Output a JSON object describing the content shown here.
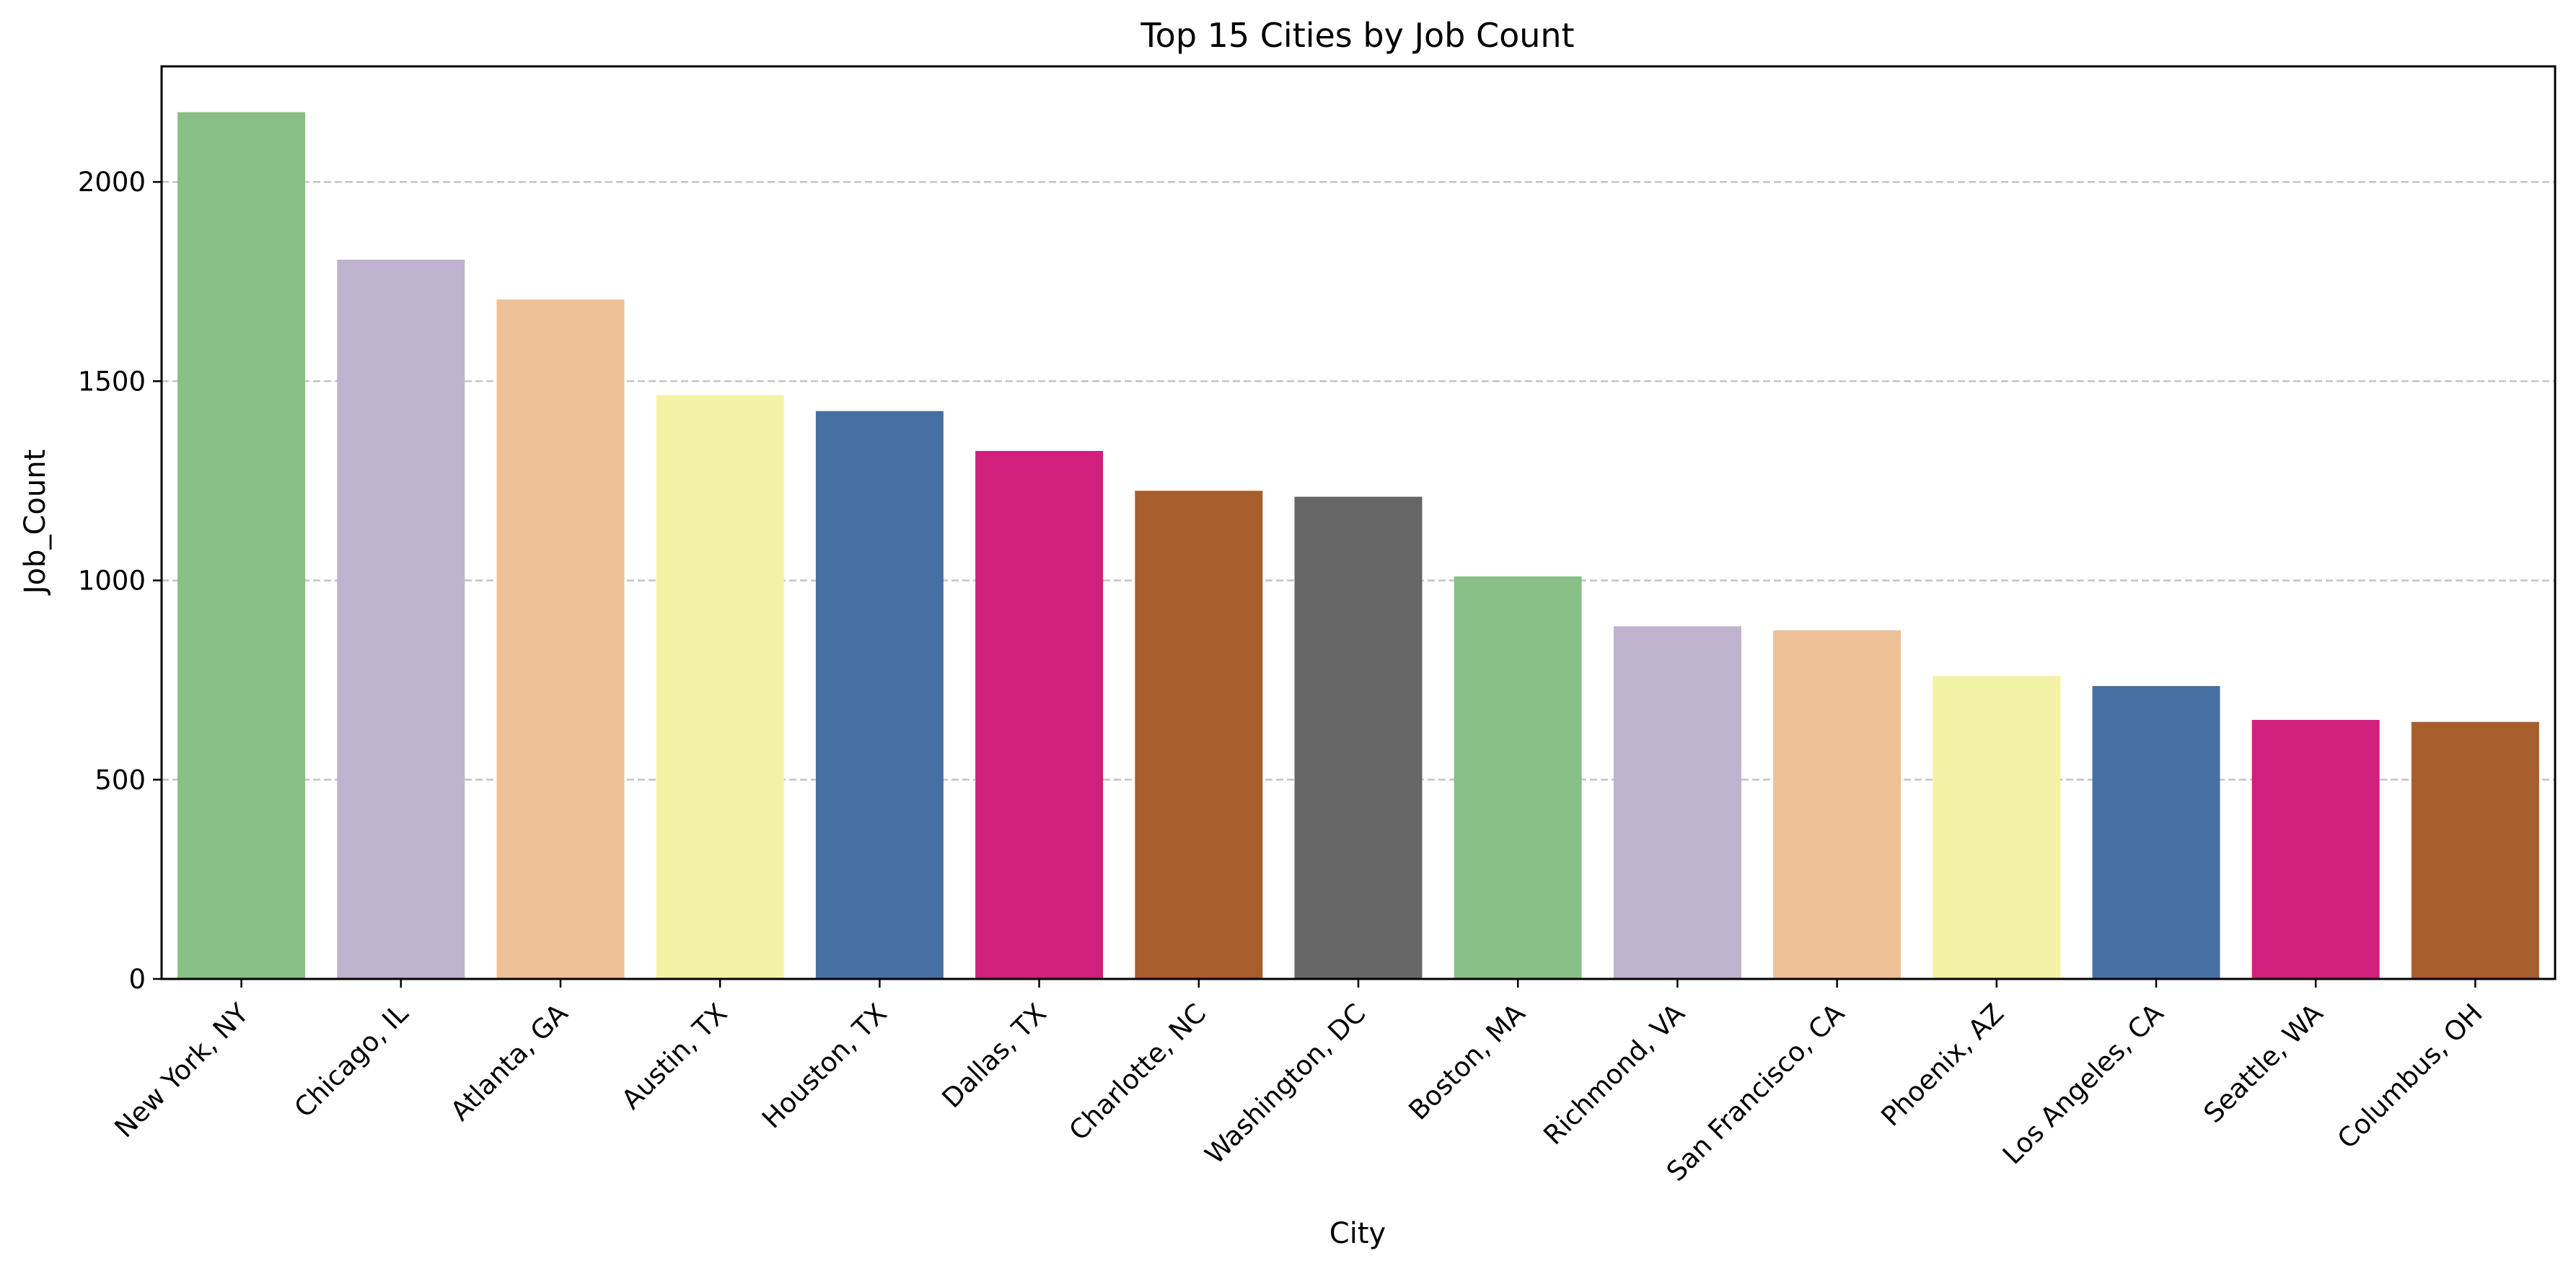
{
  "chart_data": {
    "type": "bar",
    "title": "Top 15 Cities by Job Count",
    "xlabel": "City",
    "ylabel": "Job_Count",
    "ylim": [
      0,
      2290
    ],
    "yticks": [
      0,
      500,
      1000,
      1500,
      2000
    ],
    "grid": "horizontal dashed",
    "categories": [
      "New York, NY",
      "Chicago, IL",
      "Atlanta, GA",
      "Austin, TX",
      "Houston, TX",
      "Dallas, TX",
      "Charlotte, NC",
      "Washington, DC",
      "Boston, MA",
      "Richmond, VA",
      "San Francisco, CA",
      "Phoenix, AZ",
      "Los Angeles, CA",
      "Seattle, WA",
      "Columbus, OH"
    ],
    "values": [
      2175,
      1805,
      1705,
      1465,
      1425,
      1325,
      1225,
      1210,
      1010,
      885,
      875,
      760,
      735,
      650,
      645
    ],
    "colors": [
      "#88bf86",
      "#bfb2cf",
      "#eec096",
      "#f2f2a4",
      "#4670a2",
      "#d01f7d",
      "#a85d2d",
      "#666666",
      "#88bf86",
      "#bfb2cf",
      "#eec096",
      "#f2f2a4",
      "#4670a2",
      "#d01f7d",
      "#a85d2d"
    ]
  }
}
